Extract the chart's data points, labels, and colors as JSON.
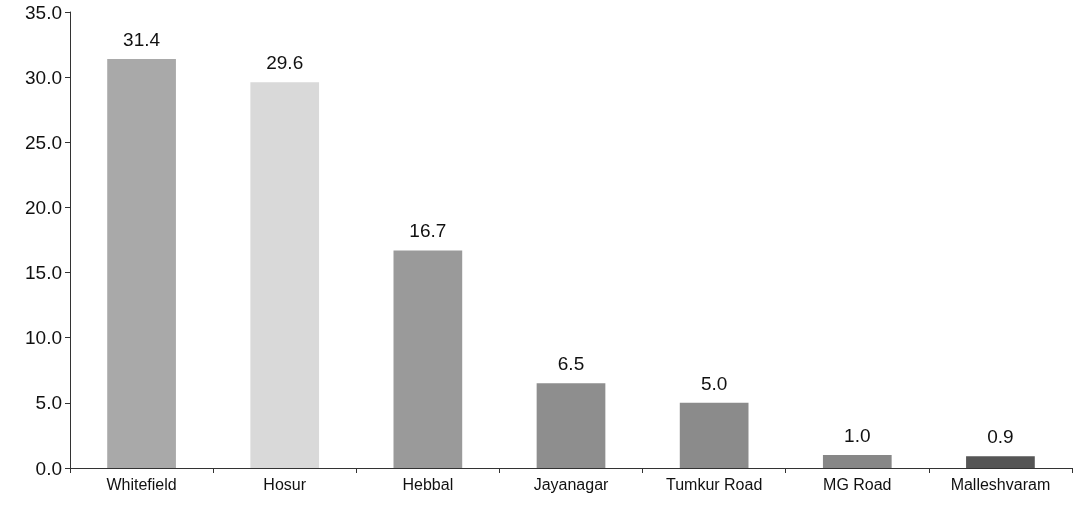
{
  "chart_data": {
    "type": "bar",
    "categories": [
      "Whitefield",
      "Hosur",
      "Hebbal",
      "Jayanagar",
      "Tumkur Road",
      "MG Road",
      "Malleshvaram"
    ],
    "values": [
      31.4,
      29.6,
      16.7,
      6.5,
      5.0,
      1.0,
      0.9
    ],
    "colors": [
      "#a9a9a9",
      "#d9d9d9",
      "#9a9a9a",
      "#8e8e8e",
      "#8b8b8b",
      "#878787",
      "#555555"
    ],
    "value_labels": [
      "31.4",
      "29.6",
      "16.7",
      "6.5",
      "5.0",
      "1.0",
      "0.9"
    ],
    "ylim": [
      0,
      35
    ],
    "yticks": [
      {
        "value": 0,
        "label": "0.0"
      },
      {
        "value": 5,
        "label": "5.0"
      },
      {
        "value": 10,
        "label": "10.0"
      },
      {
        "value": 15,
        "label": "15.0"
      },
      {
        "value": 20,
        "label": "20.0"
      },
      {
        "value": 25,
        "label": "25.0"
      },
      {
        "value": 30,
        "label": "30.0"
      },
      {
        "value": 35,
        "label": "35.0"
      }
    ],
    "grid": false
  }
}
